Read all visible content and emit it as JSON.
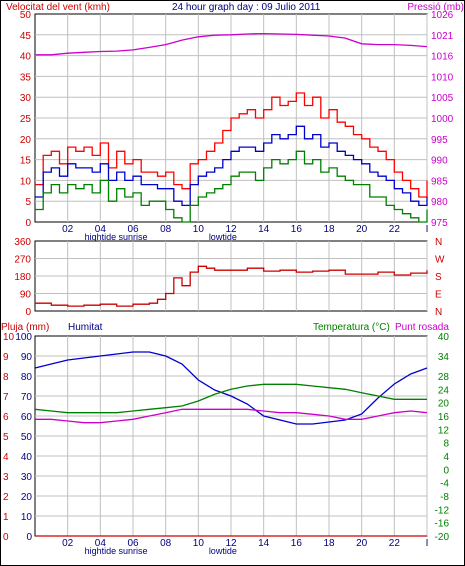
{
  "header": {
    "title": "24 hour graph day : 09 Julio 2011",
    "left_label": "Velocitat del vent (kmh)",
    "right_label": "Pressió (mb)"
  },
  "panel3_labels": {
    "rain": "Pluja (mm)",
    "humidity": "Humitat",
    "temperature": "Temperatura (°C)",
    "dewpoint": "Punt rosada"
  },
  "colors": {
    "wind_gust": "#ff0000",
    "wind_avg": "#0000cc",
    "wind_min": "#008000",
    "pressure": "#cc00cc",
    "direction": "#cc0000",
    "humidity": "#0000cc",
    "temperature": "#008000",
    "dewpoint": "#cc00cc",
    "rain": "#cc0000",
    "axis_text_left": "#cc0000",
    "axis_text_right": "#cc00cc",
    "navy": "#000080"
  },
  "x_ticks": [
    "02",
    "04",
    "06",
    "08",
    "10",
    "12",
    "14",
    "16",
    "18",
    "20",
    "22",
    "I"
  ],
  "event_labels": [
    {
      "text": "hightide",
      "hour": 4
    },
    {
      "text": "sunrise",
      "hour": 6
    },
    {
      "text": "lowtide",
      "hour": 11.5
    }
  ],
  "chart_data": [
    {
      "type": "line",
      "title": "24 hour graph day : 09 Julio 2011",
      "x_unit": "hour",
      "xlim": [
        0,
        24
      ],
      "left_axis": {
        "label": "Velocitat del vent (kmh)",
        "ylim": [
          0,
          50
        ],
        "ticks": [
          0,
          5,
          10,
          15,
          20,
          25,
          30,
          35,
          40,
          45,
          50
        ]
      },
      "right_axis": {
        "label": "Pressió (mb)",
        "ylim": [
          975,
          1026
        ],
        "ticks": [
          975,
          980,
          985,
          990,
          995,
          1000,
          1005,
          1010,
          1016,
          1021,
          1026
        ]
      },
      "series": [
        {
          "key": "gust",
          "axis": "left",
          "x": [
            0,
            0.5,
            1,
            1.5,
            2,
            2.5,
            3,
            3.5,
            4,
            4.5,
            5,
            5.5,
            6,
            6.5,
            7,
            7.5,
            8,
            8.5,
            9,
            9.5,
            10,
            10.5,
            11,
            11.5,
            12,
            12.5,
            13,
            13.5,
            14,
            14.5,
            15,
            15.5,
            16,
            16.5,
            17,
            17.5,
            18,
            18.5,
            19,
            19.5,
            20,
            20.5,
            21,
            21.5,
            22,
            22.5,
            23,
            23.5,
            24
          ],
          "y": [
            9,
            16,
            17,
            14,
            18,
            17,
            18,
            16,
            19,
            13,
            17,
            14,
            15,
            12,
            12,
            11,
            12,
            9,
            8,
            14,
            15,
            17,
            19,
            22,
            25,
            26,
            27,
            25,
            27,
            30,
            28,
            29,
            31,
            28,
            30,
            25,
            27,
            24,
            23,
            21,
            20,
            18,
            17,
            15,
            12,
            10,
            8,
            6,
            10
          ]
        },
        {
          "key": "avg",
          "axis": "left",
          "x": [
            0,
            0.5,
            1,
            1.5,
            2,
            2.5,
            3,
            3.5,
            4,
            4.5,
            5,
            5.5,
            6,
            6.5,
            7,
            7.5,
            8,
            8.5,
            9,
            9.5,
            10,
            10.5,
            11,
            11.5,
            12,
            12.5,
            13,
            13.5,
            14,
            14.5,
            15,
            15.5,
            16,
            16.5,
            17,
            17.5,
            18,
            18.5,
            19,
            19.5,
            20,
            20.5,
            21,
            21.5,
            22,
            22.5,
            23,
            23.5,
            24
          ],
          "y": [
            6,
            12,
            13,
            11,
            14,
            13,
            13,
            12,
            14,
            10,
            12,
            10,
            11,
            9,
            9,
            8,
            8,
            5,
            4,
            9,
            11,
            12,
            13,
            15,
            17,
            18,
            18,
            17,
            19,
            21,
            20,
            21,
            23,
            20,
            21,
            18,
            19,
            17,
            16,
            15,
            14,
            12,
            11,
            10,
            8,
            7,
            5,
            4,
            6
          ]
        },
        {
          "key": "min",
          "axis": "left",
          "x": [
            0,
            0.5,
            1,
            1.5,
            2,
            2.5,
            3,
            3.5,
            4,
            4.5,
            5,
            5.5,
            6,
            6.5,
            7,
            7.5,
            8,
            8.5,
            9,
            9.5,
            10,
            10.5,
            11,
            11.5,
            12,
            12.5,
            13,
            13.5,
            14,
            14.5,
            15,
            15.5,
            16,
            16.5,
            17,
            17.5,
            18,
            18.5,
            19,
            19.5,
            20,
            20.5,
            21,
            21.5,
            22,
            22.5,
            23,
            23.5,
            24
          ],
          "y": [
            3,
            7,
            9,
            7,
            9,
            8,
            9,
            7,
            10,
            5,
            8,
            6,
            7,
            4,
            5,
            5,
            3,
            1,
            0,
            4,
            6,
            7,
            8,
            9,
            11,
            12,
            12,
            10,
            13,
            15,
            14,
            15,
            17,
            14,
            15,
            12,
            13,
            11,
            10,
            9,
            9,
            6,
            6,
            4,
            3,
            2,
            1,
            0,
            3
          ]
        },
        {
          "key": "pressure",
          "axis": "right",
          "x": [
            0,
            1,
            2,
            3,
            4,
            5,
            6,
            7,
            8,
            9,
            10,
            11,
            12,
            13,
            14,
            15,
            16,
            17,
            18,
            19,
            20,
            21,
            22,
            23,
            24
          ],
          "y": [
            1016,
            1016,
            1016.4,
            1016.6,
            1016.8,
            1016.9,
            1017.2,
            1017.8,
            1018.5,
            1019.6,
            1020.4,
            1020.8,
            1020.9,
            1021.1,
            1021.2,
            1021.1,
            1021,
            1020.8,
            1020.6,
            1020.1,
            1018.7,
            1018.5,
            1018.5,
            1018.3,
            1018
          ]
        }
      ]
    },
    {
      "type": "line",
      "x_unit": "hour",
      "xlim": [
        0,
        24
      ],
      "left_axis": {
        "ylim": [
          0,
          360
        ],
        "ticks": [
          0,
          90,
          180,
          270,
          360
        ]
      },
      "right_axis_labels": [
        "N",
        "W",
        "S",
        "E",
        "N"
      ],
      "series": [
        {
          "key": "direction",
          "x": [
            0,
            1,
            2,
            3,
            4,
            5,
            6,
            7,
            7.5,
            8,
            8.5,
            9,
            9.5,
            10,
            10.5,
            11,
            12,
            13,
            14,
            15,
            16,
            17,
            18,
            19,
            20,
            21,
            22,
            23,
            24
          ],
          "y": [
            40,
            30,
            25,
            30,
            35,
            25,
            35,
            40,
            60,
            90,
            170,
            130,
            200,
            230,
            220,
            210,
            210,
            220,
            205,
            210,
            200,
            205,
            210,
            190,
            190,
            200,
            185,
            195,
            210
          ]
        }
      ]
    },
    {
      "type": "line",
      "x_unit": "hour",
      "xlim": [
        0,
        24
      ],
      "left_axis_1": {
        "label": "Pluja (mm)",
        "ylim": [
          0,
          10
        ],
        "ticks": [
          0,
          1,
          2,
          3,
          4,
          5,
          6,
          7,
          8,
          9,
          10
        ]
      },
      "left_axis_2": {
        "label": "Humitat",
        "ylim": [
          0,
          100
        ],
        "ticks": [
          0,
          10,
          20,
          30,
          40,
          50,
          60,
          70,
          80,
          90,
          100
        ]
      },
      "right_axis": {
        "label": "Temperatura (°C)",
        "ylim": [
          -20,
          40
        ],
        "ticks": [
          -20,
          -16,
          -12,
          -8,
          -4,
          0,
          4,
          8,
          12,
          16,
          20,
          24,
          28,
          34,
          40
        ]
      },
      "series": [
        {
          "key": "humidity",
          "axis": "Humitat",
          "x": [
            0,
            1,
            2,
            3,
            4,
            5,
            6,
            7,
            8,
            9,
            10,
            11,
            12,
            13,
            14,
            15,
            16,
            17,
            18,
            19,
            20,
            21,
            22,
            23,
            24
          ],
          "y": [
            84,
            86,
            88,
            89,
            90,
            91,
            92,
            92,
            90,
            86,
            78,
            73,
            70,
            66,
            60,
            58,
            56,
            56,
            57,
            58,
            61,
            69,
            76,
            81,
            84
          ]
        },
        {
          "key": "temperature",
          "axis": "Temperatura",
          "x": [
            0,
            1,
            2,
            3,
            4,
            5,
            6,
            7,
            8,
            9,
            10,
            11,
            12,
            13,
            14,
            15,
            16,
            17,
            18,
            19,
            20,
            21,
            22,
            23,
            24
          ],
          "y": [
            18,
            17.5,
            17,
            17,
            17,
            17,
            17.5,
            18,
            18.5,
            19,
            20.5,
            22.5,
            24,
            25,
            25.5,
            25.5,
            25.5,
            25,
            24.5,
            24,
            23,
            22,
            21,
            21,
            21
          ]
        },
        {
          "key": "dewpoint",
          "axis": "Temperatura",
          "x": [
            0,
            1,
            2,
            3,
            4,
            5,
            6,
            7,
            8,
            9,
            10,
            11,
            12,
            13,
            14,
            15,
            16,
            17,
            18,
            19,
            20,
            21,
            22,
            23,
            24
          ],
          "y": [
            15,
            15,
            14.5,
            14,
            14,
            14.5,
            15,
            16,
            17,
            18,
            18,
            18,
            18,
            18,
            17.5,
            17,
            17,
            16.5,
            16,
            15,
            15,
            16,
            17,
            17.5,
            17
          ]
        },
        {
          "key": "rain",
          "axis": "Pluja",
          "x": [
            0,
            24
          ],
          "y": [
            0,
            0
          ]
        }
      ]
    }
  ]
}
